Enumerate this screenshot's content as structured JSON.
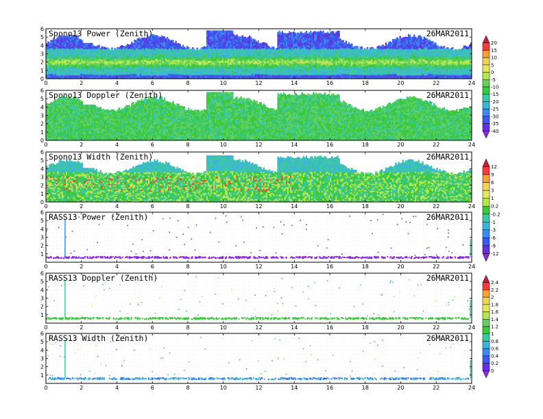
{
  "chart_data": [
    {
      "type": "heatmap",
      "title": "Spono13 Power (Zenith)",
      "date": "26MAR2011",
      "xlim": [
        0,
        24
      ],
      "ylim": [
        0,
        6
      ],
      "xticks": [
        0,
        2,
        4,
        6,
        8,
        10,
        12,
        14,
        16,
        18,
        20,
        22,
        24
      ],
      "yticks": [
        0,
        1,
        2,
        3,
        4,
        5,
        6
      ],
      "colorbar": "power",
      "style": "dense"
    },
    {
      "type": "heatmap",
      "title": "Spono13 Doppler (Zenith)",
      "date": "26MAR2011",
      "xlim": [
        0,
        24
      ],
      "ylim": [
        0,
        6
      ],
      "xticks": [
        0,
        2,
        4,
        6,
        8,
        10,
        12,
        14,
        16,
        18,
        20,
        22,
        24
      ],
      "yticks": [
        0,
        1,
        2,
        3,
        4,
        5,
        6
      ],
      "colorbar": "power",
      "style": "dense"
    },
    {
      "type": "heatmap",
      "title": "Spono13 Width (Zenith)",
      "date": "26MAR2011",
      "xlim": [
        0,
        24
      ],
      "ylim": [
        0,
        6
      ],
      "xticks": [
        0,
        2,
        4,
        6,
        8,
        10,
        12,
        14,
        16,
        18,
        20,
        22,
        24
      ],
      "yticks": [
        0,
        1,
        2,
        3,
        4,
        5,
        6
      ],
      "colorbar": "width",
      "style": "dense"
    },
    {
      "type": "heatmap",
      "title": "RASS13 Power (Zenith)",
      "date": "26MAR2011",
      "xlim": [
        0,
        24
      ],
      "ylim": [
        0,
        6
      ],
      "xticks": [
        0,
        2,
        4,
        6,
        8,
        10,
        12,
        14,
        16,
        18,
        20,
        22,
        24
      ],
      "yticks": [
        1,
        2,
        3,
        4,
        5,
        6
      ],
      "colorbar": "width",
      "style": "sparse-power"
    },
    {
      "type": "heatmap",
      "title": "RASS13 Doppler (Zenith)",
      "date": "26MAR2011",
      "xlim": [
        0,
        24
      ],
      "ylim": [
        0,
        6
      ],
      "xticks": [
        0,
        2,
        4,
        6,
        8,
        10,
        12,
        14,
        16,
        18,
        20,
        22,
        24
      ],
      "yticks": [
        1,
        2,
        3,
        4,
        5,
        6
      ],
      "colorbar": "rass",
      "style": "sparse-doppler"
    },
    {
      "type": "heatmap",
      "title": "RASS13 Width (Zenith)",
      "date": "26MAR2011",
      "xlim": [
        0,
        24
      ],
      "ylim": [
        0,
        6
      ],
      "xticks": [
        0,
        2,
        4,
        6,
        8,
        10,
        12,
        14,
        16,
        18,
        20,
        22,
        24
      ],
      "yticks": [
        1,
        2,
        3,
        4,
        5,
        6
      ],
      "colorbar": "rass",
      "style": "sparse-width"
    }
  ],
  "colorbars": {
    "power": {
      "labels": [
        "20",
        "15",
        "10",
        "5",
        "0",
        "-5",
        "-10",
        "-15",
        "-20",
        "-25",
        "-30",
        "-35",
        "-40"
      ],
      "colors": [
        "#c81e3c",
        "#f03c3c",
        "#f5a03c",
        "#f0d25a",
        "#e6e664",
        "#b4e650",
        "#64d25a",
        "#3cc83c",
        "#3cc8a0",
        "#3cb4dc",
        "#3c8cf0",
        "#3c5af0",
        "#6432dc",
        "#8c28dc"
      ]
    },
    "width": {
      "labels": [
        "12",
        "9",
        "6",
        "3",
        "1",
        "0.2",
        "-0.2",
        "-1",
        "-3",
        "-6",
        "-9",
        "-12"
      ],
      "colors": [
        "#c81e3c",
        "#f03c3c",
        "#f5a03c",
        "#f0d25a",
        "#e6e664",
        "#b4e650",
        "#3cc83c",
        "#3cc8a0",
        "#3cb4dc",
        "#3c8cf0",
        "#3c5af0",
        "#6432dc",
        "#8c28dc"
      ]
    },
    "rass": {
      "labels": [
        "2.4",
        "2.2",
        "2",
        "1.8",
        "1.6",
        "1.4",
        "1.2",
        "1",
        "0.8",
        "0.6",
        "0.4",
        "0.2",
        "0"
      ],
      "colors": [
        "#c81e3c",
        "#f03c3c",
        "#f5a03c",
        "#f0d25a",
        "#e6e664",
        "#b4e650",
        "#64d25a",
        "#3cc83c",
        "#3cc8a0",
        "#3cb4dc",
        "#3c8cf0",
        "#3c5af0",
        "#6432dc",
        "#8c28dc"
      ]
    }
  }
}
